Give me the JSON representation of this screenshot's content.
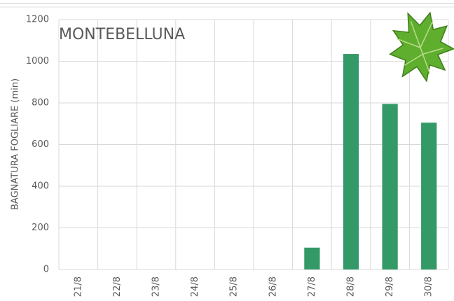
{
  "chart_data": {
    "type": "bar",
    "title": "MONTEBELLUNA",
    "y_label": "BAGNATURA FOGLIARE (min)",
    "categories": [
      "21/8",
      "22/8",
      "23/8",
      "24/8",
      "25/8",
      "26/8",
      "27/8",
      "28/8",
      "29/8",
      "30/8"
    ],
    "values": [
      0,
      0,
      0,
      0,
      0,
      0,
      105,
      1035,
      795,
      705
    ],
    "color": "#339966",
    "ylim": [
      0,
      1200
    ],
    "yticks": [
      0,
      200,
      400,
      600,
      800,
      1000,
      1200
    ],
    "grid": true
  }
}
